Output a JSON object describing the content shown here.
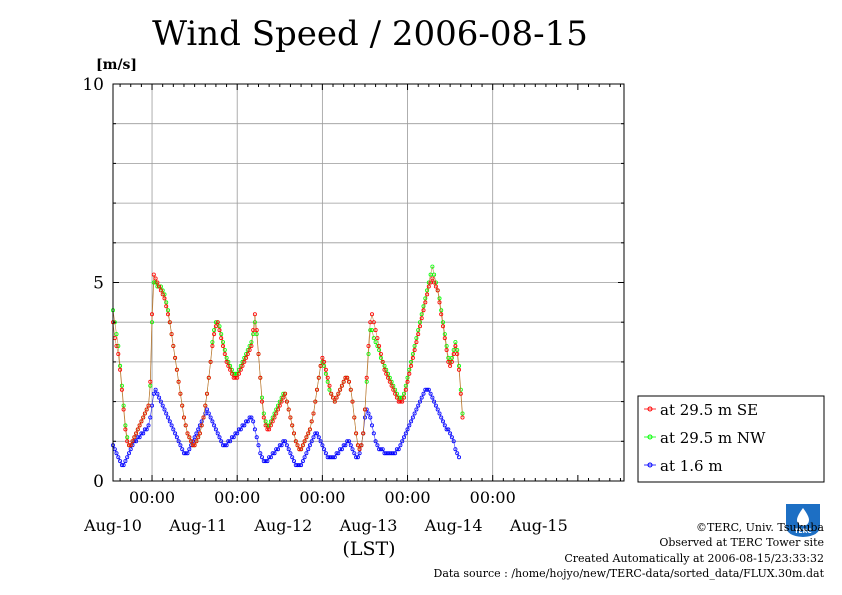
{
  "title": "Wind Speed / 2006-08-15",
  "y_unit": "[m/s]",
  "x_axis_label": "(LST)",
  "credits": {
    "copyright": "©TERC, Univ. Tsukuba",
    "observed": "Observed at TERC Tower site",
    "created": "Created Automatically at 2006-08-15/23:33:32",
    "source": "Data source : /home/hojyo/new/TERC-data/sorted_data/FLUX.30m.dat"
  },
  "logo_text": "TERC",
  "colors": {
    "se": "#ff0000",
    "nw": "#00ff00",
    "low": "#0000ff",
    "line": "#b36b1a",
    "grid": "#9a9a9a"
  },
  "chart_data": {
    "type": "line",
    "title": "Wind Speed / 2006-08-15",
    "ylabel": "[m/s]",
    "xlabel": "(LST)",
    "ylim": [
      0,
      10
    ],
    "yticks": [
      0,
      5,
      10
    ],
    "xlim_days": [
      0,
      6
    ],
    "x_tick_labels": [
      "00:00",
      "00:00",
      "00:00",
      "00:00",
      "00:00"
    ],
    "x_day_labels": [
      "Aug-10",
      "Aug-11",
      "Aug-12",
      "Aug-13",
      "Aug-14",
      "Aug-15"
    ],
    "grid": true,
    "legend_position": "right",
    "x_units": "hours since Aug-09 13:00 LST",
    "x_step_hours": 0.5,
    "series": [
      {
        "name": "at 29.5 m SE",
        "color": "#ff0000",
        "values": [
          4.0,
          3.6,
          3.4,
          3.2,
          2.8,
          2.3,
          1.8,
          1.3,
          1.0,
          0.9,
          0.9,
          1.0,
          1.1,
          1.2,
          1.3,
          1.4,
          1.5,
          1.6,
          1.7,
          1.8,
          1.9,
          2.5,
          4.2,
          5.2,
          5.1,
          5.0,
          4.9,
          4.8,
          4.7,
          4.6,
          4.4,
          4.2,
          4.0,
          3.7,
          3.4,
          3.1,
          2.8,
          2.5,
          2.2,
          1.9,
          1.6,
          1.4,
          1.2,
          1.1,
          1.0,
          0.9,
          0.9,
          1.0,
          1.1,
          1.2,
          1.4,
          1.6,
          1.9,
          2.2,
          2.6,
          3.0,
          3.4,
          3.7,
          3.9,
          4.0,
          3.8,
          3.6,
          3.4,
          3.2,
          3.0,
          2.9,
          2.8,
          2.7,
          2.6,
          2.6,
          2.6,
          2.7,
          2.8,
          2.9,
          3.0,
          3.1,
          3.2,
          3.3,
          3.4,
          3.8,
          4.2,
          3.8,
          3.2,
          2.6,
          2.0,
          1.6,
          1.4,
          1.3,
          1.3,
          1.4,
          1.5,
          1.6,
          1.7,
          1.8,
          1.9,
          2.0,
          2.1,
          2.2,
          2.0,
          1.8,
          1.6,
          1.4,
          1.2,
          1.0,
          0.9,
          0.8,
          0.8,
          0.9,
          1.0,
          1.1,
          1.2,
          1.3,
          1.5,
          1.7,
          2.0,
          2.3,
          2.6,
          2.9,
          3.1,
          3.0,
          2.8,
          2.6,
          2.4,
          2.2,
          2.1,
          2.0,
          2.1,
          2.2,
          2.3,
          2.4,
          2.5,
          2.6,
          2.6,
          2.5,
          2.3,
          2.0,
          1.6,
          1.2,
          0.9,
          0.8,
          0.9,
          1.2,
          1.8,
          2.6,
          3.4,
          4.0,
          4.2,
          4.0,
          3.8,
          3.6,
          3.4,
          3.2,
          3.0,
          2.8,
          2.7,
          2.6,
          2.5,
          2.4,
          2.3,
          2.2,
          2.1,
          2.0,
          2.0,
          2.0,
          2.1,
          2.3,
          2.5,
          2.7,
          2.9,
          3.1,
          3.3,
          3.5,
          3.7,
          3.9,
          4.1,
          4.3,
          4.5,
          4.7,
          4.9,
          5.0,
          5.1,
          5.0,
          4.9,
          4.8,
          4.5,
          4.2,
          3.9,
          3.6,
          3.3,
          3.0,
          2.9,
          3.0,
          3.2,
          3.4,
          3.2,
          2.8,
          2.2,
          1.6
        ]
      },
      {
        "name": "at 29.5 m NW",
        "color": "#00ff00",
        "values": [
          4.3,
          4.0,
          3.7,
          3.4,
          2.9,
          2.4,
          1.9,
          1.4,
          1.1,
          0.9,
          0.9,
          1.0,
          1.1,
          1.2,
          1.3,
          1.4,
          1.5,
          1.6,
          1.7,
          1.8,
          1.9,
          2.4,
          4.0,
          5.0,
          5.0,
          4.9,
          4.9,
          4.9,
          4.8,
          4.7,
          4.5,
          4.3,
          4.0,
          3.7,
          3.4,
          3.1,
          2.8,
          2.5,
          2.2,
          1.9,
          1.6,
          1.4,
          1.2,
          1.1,
          1.0,
          0.9,
          0.9,
          1.0,
          1.1,
          1.2,
          1.4,
          1.6,
          1.9,
          2.2,
          2.6,
          3.0,
          3.5,
          3.8,
          4.0,
          4.0,
          3.9,
          3.7,
          3.5,
          3.3,
          3.1,
          3.0,
          2.9,
          2.8,
          2.7,
          2.7,
          2.7,
          2.8,
          2.9,
          3.0,
          3.1,
          3.2,
          3.3,
          3.4,
          3.5,
          3.7,
          4.0,
          3.7,
          3.2,
          2.6,
          2.1,
          1.7,
          1.5,
          1.4,
          1.4,
          1.5,
          1.6,
          1.7,
          1.8,
          1.9,
          2.0,
          2.1,
          2.2,
          2.2,
          2.0,
          1.8,
          1.6,
          1.4,
          1.2,
          1.0,
          0.9,
          0.8,
          0.8,
          0.9,
          1.0,
          1.1,
          1.2,
          1.3,
          1.5,
          1.7,
          2.0,
          2.3,
          2.6,
          2.9,
          3.0,
          2.9,
          2.7,
          2.5,
          2.3,
          2.2,
          2.1,
          2.0,
          2.1,
          2.2,
          2.3,
          2.4,
          2.5,
          2.6,
          2.6,
          2.5,
          2.3,
          2.0,
          1.6,
          1.2,
          0.9,
          0.8,
          0.9,
          1.2,
          1.8,
          2.5,
          3.2,
          3.8,
          3.8,
          3.6,
          3.5,
          3.4,
          3.3,
          3.1,
          3.0,
          2.9,
          2.8,
          2.7,
          2.6,
          2.5,
          2.4,
          2.3,
          2.2,
          2.1,
          2.1,
          2.1,
          2.2,
          2.4,
          2.6,
          2.8,
          3.0,
          3.2,
          3.4,
          3.6,
          3.8,
          4.0,
          4.2,
          4.4,
          4.6,
          4.8,
          5.0,
          5.2,
          5.4,
          5.2,
          5.0,
          4.8,
          4.6,
          4.3,
          4.0,
          3.7,
          3.4,
          3.1,
          3.0,
          3.1,
          3.3,
          3.5,
          3.3,
          2.9,
          2.3,
          1.7
        ]
      },
      {
        "name": "at 1.6 m",
        "color": "#0000ff",
        "values": [
          0.9,
          0.8,
          0.7,
          0.6,
          0.5,
          0.4,
          0.4,
          0.5,
          0.6,
          0.7,
          0.8,
          0.9,
          1.0,
          1.0,
          1.1,
          1.1,
          1.2,
          1.2,
          1.3,
          1.3,
          1.4,
          1.6,
          1.9,
          2.2,
          2.3,
          2.2,
          2.1,
          2.0,
          1.9,
          1.8,
          1.7,
          1.6,
          1.5,
          1.4,
          1.3,
          1.2,
          1.1,
          1.0,
          0.9,
          0.8,
          0.7,
          0.7,
          0.7,
          0.8,
          0.9,
          1.0,
          1.1,
          1.2,
          1.3,
          1.4,
          1.5,
          1.6,
          1.7,
          1.8,
          1.7,
          1.6,
          1.5,
          1.4,
          1.3,
          1.2,
          1.1,
          1.0,
          0.9,
          0.9,
          0.9,
          1.0,
          1.0,
          1.1,
          1.1,
          1.2,
          1.2,
          1.3,
          1.3,
          1.4,
          1.4,
          1.5,
          1.5,
          1.6,
          1.6,
          1.5,
          1.3,
          1.1,
          0.9,
          0.7,
          0.6,
          0.5,
          0.5,
          0.5,
          0.6,
          0.6,
          0.7,
          0.7,
          0.8,
          0.8,
          0.9,
          0.9,
          1.0,
          1.0,
          0.9,
          0.8,
          0.7,
          0.6,
          0.5,
          0.4,
          0.4,
          0.4,
          0.4,
          0.5,
          0.6,
          0.7,
          0.8,
          0.9,
          1.0,
          1.1,
          1.2,
          1.2,
          1.1,
          1.0,
          0.9,
          0.8,
          0.7,
          0.6,
          0.6,
          0.6,
          0.6,
          0.6,
          0.7,
          0.7,
          0.8,
          0.8,
          0.9,
          0.9,
          1.0,
          1.0,
          0.9,
          0.8,
          0.7,
          0.6,
          0.6,
          0.7,
          0.9,
          1.2,
          1.6,
          1.8,
          1.7,
          1.6,
          1.4,
          1.2,
          1.0,
          0.9,
          0.8,
          0.8,
          0.8,
          0.7,
          0.7,
          0.7,
          0.7,
          0.7,
          0.7,
          0.7,
          0.8,
          0.8,
          0.9,
          1.0,
          1.1,
          1.2,
          1.3,
          1.4,
          1.5,
          1.6,
          1.7,
          1.8,
          1.9,
          2.0,
          2.1,
          2.2,
          2.3,
          2.3,
          2.3,
          2.2,
          2.1,
          2.0,
          1.9,
          1.8,
          1.7,
          1.6,
          1.5,
          1.4,
          1.3,
          1.3,
          1.2,
          1.1,
          1.0,
          0.8,
          0.7,
          0.6
        ]
      }
    ]
  }
}
